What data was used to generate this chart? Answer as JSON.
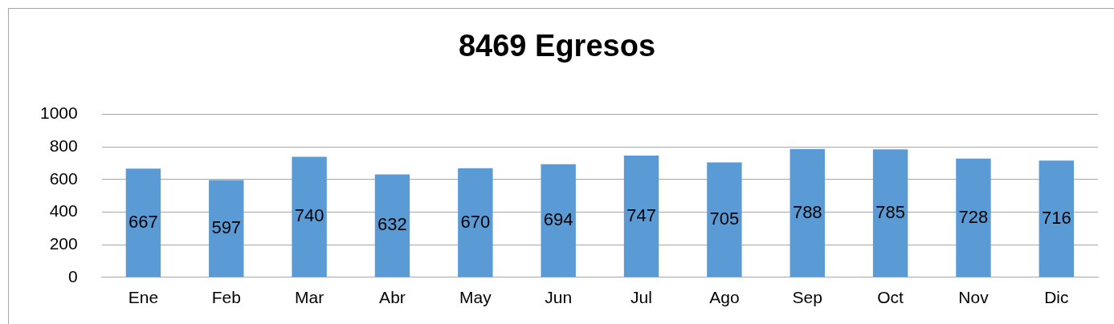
{
  "chart_data": {
    "type": "bar",
    "title": "8469 Egresos",
    "categories": [
      "Ene",
      "Feb",
      "Mar",
      "Abr",
      "May",
      "Jun",
      "Jul",
      "Ago",
      "Sep",
      "Oct",
      "Nov",
      "Dic"
    ],
    "values": [
      667,
      597,
      740,
      632,
      670,
      694,
      747,
      705,
      788,
      785,
      728,
      716
    ],
    "color": "#5b9bd5",
    "ylim": [
      0,
      1000
    ],
    "yticks": [
      0,
      200,
      400,
      600,
      800,
      1000
    ],
    "grid": "y",
    "legend": false,
    "data_labels": true
  }
}
